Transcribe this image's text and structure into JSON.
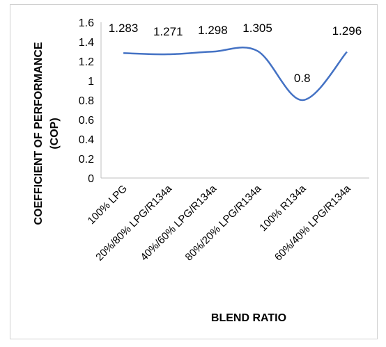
{
  "chart_data": {
    "type": "line",
    "categories": [
      "100% LPG",
      "20%/80% LPG/R134a",
      "40%/60% LPG/R134a",
      "80%/20% LPG/R134a",
      "100% R134a",
      "60%/40% LPG/R134a"
    ],
    "series": [
      {
        "values": [
          1.283,
          1.271,
          1.298,
          1.305,
          0.8,
          1.296
        ]
      }
    ],
    "data_labels": [
      "1.283",
      "1.271",
      "1.298",
      "1.305",
      "0.8",
      "1.296"
    ],
    "yticks": [
      "0",
      "0.2",
      "0.4",
      "0.6",
      "0.8",
      "1",
      "1.2",
      "1.4",
      "1.6"
    ],
    "ylim": [
      0,
      1.6
    ],
    "xlabel": "BLEND RATIO",
    "ylabel_line1": "COEFFICIENT OF PERFORMANCE",
    "ylabel_line2": "(COP)",
    "line_color": "#4472c4",
    "grid": false
  }
}
